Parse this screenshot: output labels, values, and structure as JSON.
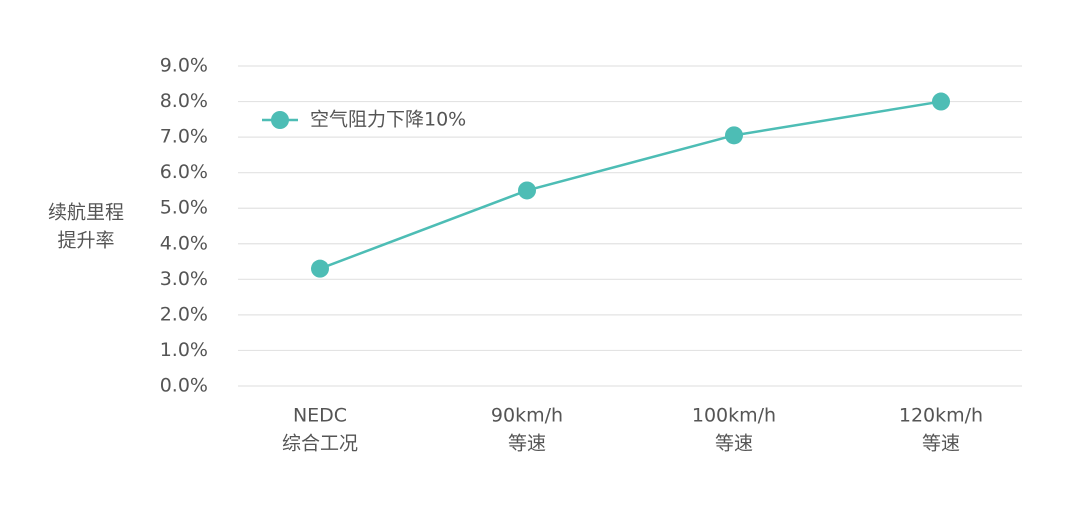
{
  "chart_data": {
    "type": "line",
    "ylabel": [
      "续航里程",
      "提升率"
    ],
    "categories": [
      [
        "NEDC",
        "综合工况"
      ],
      [
        "90km/h",
        "等速"
      ],
      [
        "100km/h",
        "等速"
      ],
      [
        "120km/h",
        "等速"
      ]
    ],
    "series": [
      {
        "name": "空气阻力下降10%",
        "color": "#4dbdb5",
        "values": [
          3.3,
          5.5,
          7.05,
          8.0
        ]
      }
    ],
    "ylim": [
      0,
      9
    ],
    "yticks": [
      {
        "value": 0,
        "label": "0.0%"
      },
      {
        "value": 1,
        "label": "1.0%"
      },
      {
        "value": 2,
        "label": "2.0%"
      },
      {
        "value": 3,
        "label": "3.0%"
      },
      {
        "value": 4,
        "label": "4.0%"
      },
      {
        "value": 5,
        "label": "5.0%"
      },
      {
        "value": 6,
        "label": "6.0%"
      },
      {
        "value": 7,
        "label": "7.0%"
      },
      {
        "value": 8,
        "label": "8.0%"
      },
      {
        "value": 9,
        "label": "9.0%"
      }
    ],
    "grid": true,
    "legend": "upper-left"
  }
}
